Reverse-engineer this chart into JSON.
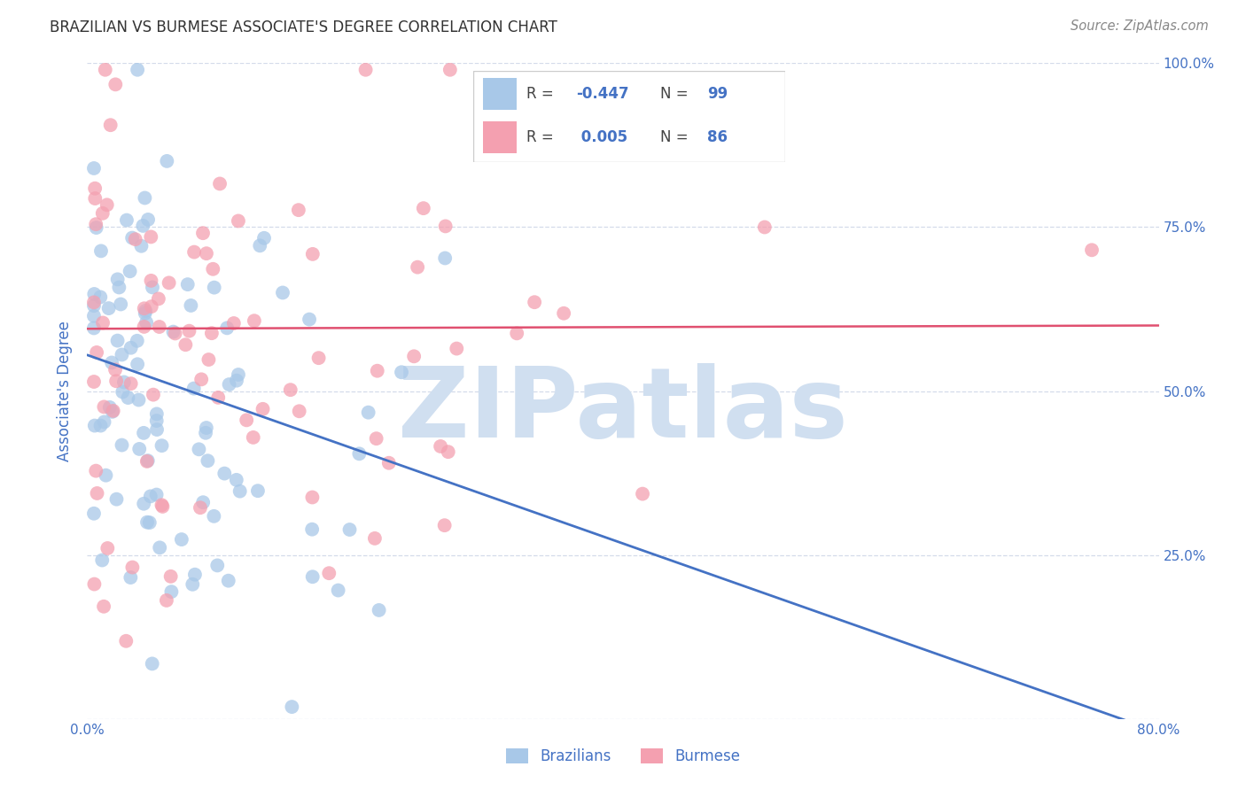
{
  "title": "BRAZILIAN VS BURMESE ASSOCIATE'S DEGREE CORRELATION CHART",
  "source": "Source: ZipAtlas.com",
  "ylabel": "Associate's Degree",
  "xlim": [
    0.0,
    0.8
  ],
  "ylim": [
    0.0,
    1.0
  ],
  "xticklabels_show": [
    "0.0%",
    "80.0%"
  ],
  "yticklabels_right": [
    "",
    "25.0%",
    "50.0%",
    "75.0%",
    "100.0%"
  ],
  "brazilian_color": "#a8c8e8",
  "burmese_color": "#f4a0b0",
  "trend_brazilian_color": "#4472c4",
  "trend_burmese_color": "#e05070",
  "legend_label1": "Brazilians",
  "legend_label2": "Burmese",
  "watermark": "ZIPatlas",
  "watermark_color": "#d0dff0",
  "title_color": "#333333",
  "source_color": "#888888",
  "axis_label_color": "#4472c4",
  "tick_label_color": "#4472c4",
  "background_color": "#ffffff",
  "grid_color": "#d0d8e8",
  "R_brazilian": -0.447,
  "N_brazilian": 99,
  "R_burmese": 0.005,
  "N_burmese": 86,
  "trend_br_x0": 0.0,
  "trend_br_y0": 0.555,
  "trend_br_x1": 0.8,
  "trend_br_y1": -0.02,
  "trend_bm_x0": 0.0,
  "trend_bm_y0": 0.595,
  "trend_bm_x1": 0.8,
  "trend_bm_y1": 0.6
}
